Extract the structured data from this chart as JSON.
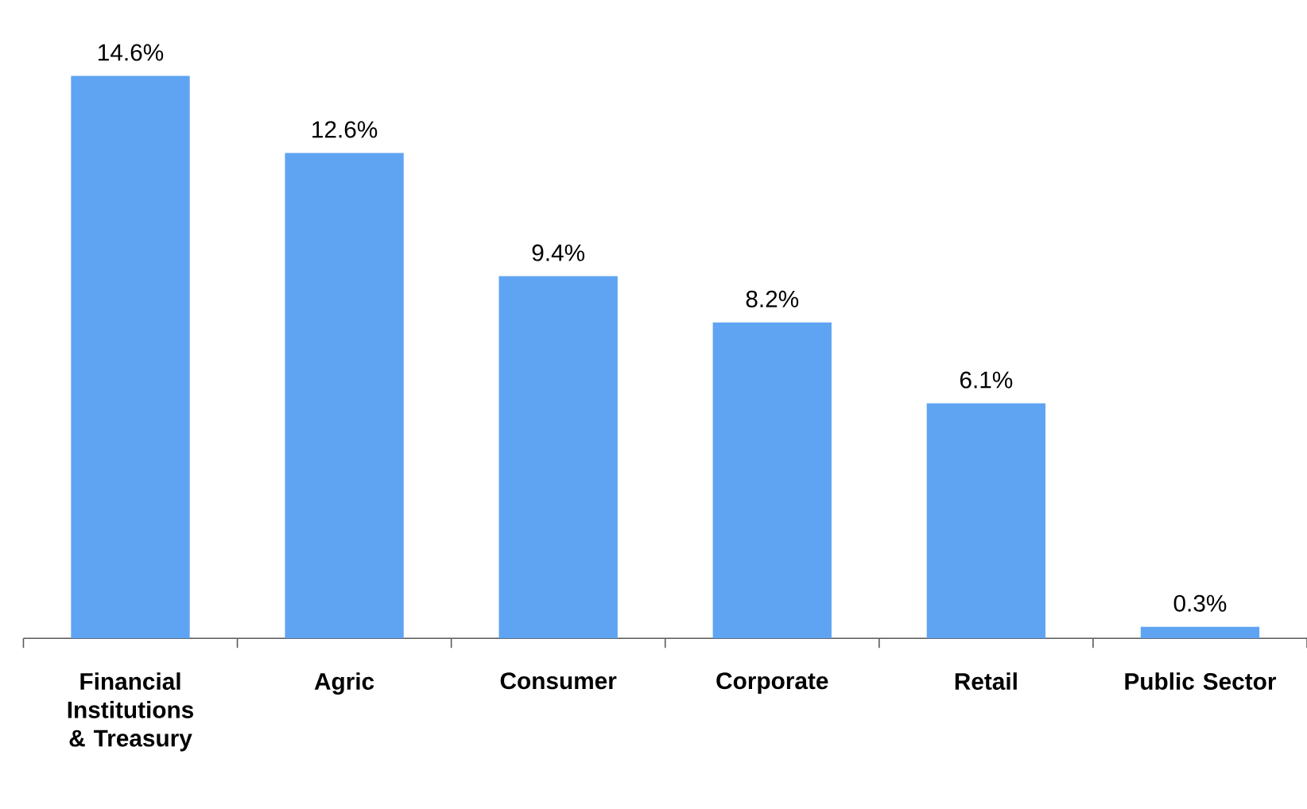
{
  "chart_data": {
    "type": "bar",
    "categories": [
      "Financial Institutions & Treasury",
      "Agric",
      "Consumer",
      "Corporate",
      "Retail",
      "Public Sector"
    ],
    "values": [
      14.6,
      12.6,
      9.4,
      8.2,
      6.1,
      0.3
    ],
    "value_labels": [
      "14.6%",
      "12.6%",
      "9.4%",
      "8.2%",
      "6.1%",
      "0.3%"
    ],
    "color": "#5fa4f2"
  }
}
